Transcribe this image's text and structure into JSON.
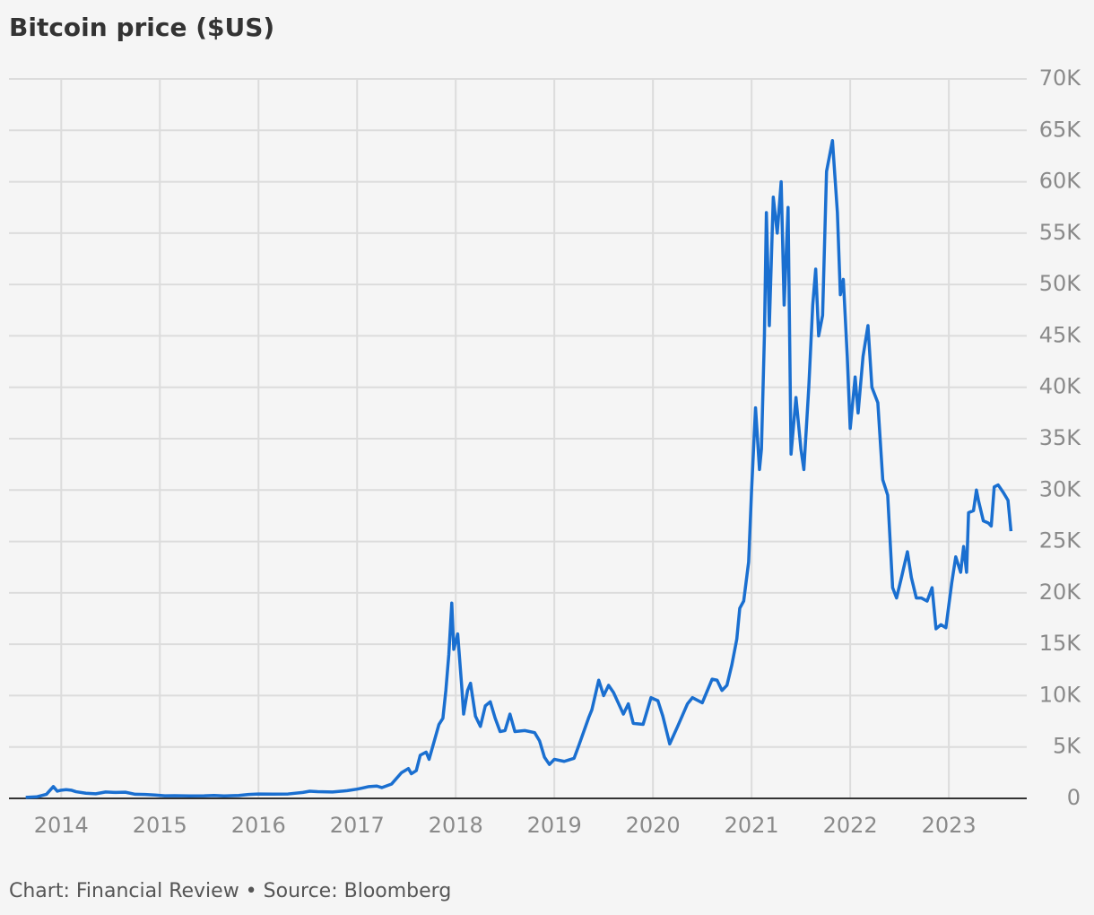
{
  "chart_data": {
    "type": "line",
    "title": "Bitcoin price ($US)",
    "source": "Chart: Financial Review • Source: Bloomberg",
    "color": "#1a6fd0",
    "grid": true,
    "xlim": [
      2013.47,
      2023.79
    ],
    "xticks": [
      2014,
      2015,
      2016,
      2017,
      2018,
      2019,
      2020,
      2021,
      2022,
      2023
    ],
    "ylim": [
      0,
      70000
    ],
    "yticks": [
      0,
      {
        "value": 5000,
        "label": "5K"
      },
      {
        "value": 10000,
        "label": "10K"
      },
      {
        "value": 15000,
        "label": "15K"
      },
      {
        "value": 20000,
        "label": "20K"
      },
      {
        "value": 25000,
        "label": "25K"
      },
      {
        "value": 30000,
        "label": "30K"
      },
      {
        "value": 35000,
        "label": "35K"
      },
      {
        "value": 40000,
        "label": "40K"
      },
      {
        "value": 45000,
        "label": "45K"
      },
      {
        "value": 50000,
        "label": "50K"
      },
      {
        "value": 55000,
        "label": "55K"
      },
      {
        "value": 60000,
        "label": "60K"
      },
      {
        "value": 65000,
        "label": "65K"
      },
      {
        "value": 70000,
        "label": "70K"
      }
    ],
    "x": [
      2013.64,
      2013.75,
      2013.85,
      2013.92,
      2013.96,
      2014.0,
      2014.05,
      2014.1,
      2014.15,
      2014.25,
      2014.35,
      2014.45,
      2014.55,
      2014.65,
      2014.75,
      2014.85,
      2014.95,
      2015.05,
      2015.15,
      2015.3,
      2015.45,
      2015.55,
      2015.65,
      2015.8,
      2015.9,
      2016.0,
      2016.15,
      2016.3,
      2016.45,
      2016.52,
      2016.6,
      2016.75,
      2016.9,
      2017.0,
      2017.05,
      2017.12,
      2017.2,
      2017.25,
      2017.35,
      2017.45,
      2017.52,
      2017.55,
      2017.6,
      2017.64,
      2017.7,
      2017.73,
      2017.78,
      2017.83,
      2017.87,
      2017.9,
      2017.93,
      2017.96,
      2017.98,
      2018.02,
      2018.06,
      2018.08,
      2018.12,
      2018.15,
      2018.2,
      2018.25,
      2018.3,
      2018.35,
      2018.4,
      2018.45,
      2018.5,
      2018.55,
      2018.6,
      2018.7,
      2018.8,
      2018.85,
      2018.9,
      2018.95,
      2019.0,
      2019.1,
      2019.2,
      2019.25,
      2019.35,
      2019.38,
      2019.45,
      2019.5,
      2019.55,
      2019.6,
      2019.7,
      2019.75,
      2019.8,
      2019.9,
      2019.98,
      2020.05,
      2020.1,
      2020.17,
      2020.25,
      2020.35,
      2020.4,
      2020.5,
      2020.6,
      2020.65,
      2020.7,
      2020.75,
      2020.8,
      2020.85,
      2020.88,
      2020.92,
      2020.97,
      2021.0,
      2021.04,
      2021.08,
      2021.1,
      2021.13,
      2021.15,
      2021.18,
      2021.22,
      2021.26,
      2021.3,
      2021.33,
      2021.37,
      2021.4,
      2021.45,
      2021.5,
      2021.53,
      2021.58,
      2021.62,
      2021.65,
      2021.68,
      2021.72,
      2021.76,
      2021.79,
      2021.82,
      2021.87,
      2021.9,
      2021.93,
      2021.97,
      2022.0,
      2022.05,
      2022.08,
      2022.13,
      2022.18,
      2022.22,
      2022.28,
      2022.33,
      2022.38,
      2022.43,
      2022.47,
      2022.52,
      2022.58,
      2022.62,
      2022.67,
      2022.72,
      2022.78,
      2022.83,
      2022.87,
      2022.92,
      2022.97,
      2023.03,
      2023.07,
      2023.12,
      2023.15,
      2023.18,
      2023.2,
      2023.25,
      2023.28,
      2023.3,
      2023.35,
      2023.4,
      2023.43,
      2023.46,
      2023.5,
      2023.55,
      2023.6,
      2023.63
    ],
    "values": [
      100,
      150,
      400,
      1150,
      700,
      800,
      850,
      800,
      650,
      500,
      450,
      620,
      580,
      600,
      400,
      380,
      330,
      250,
      260,
      240,
      250,
      280,
      240,
      280,
      380,
      430,
      420,
      430,
      580,
      700,
      650,
      620,
      750,
      900,
      1000,
      1150,
      1200,
      1050,
      1400,
      2500,
      2900,
      2400,
      2700,
      4200,
      4500,
      3800,
      5500,
      7200,
      7800,
      10500,
      14000,
      19000,
      14500,
      16000,
      11000,
      8200,
      10500,
      11200,
      8000,
      7000,
      9000,
      9400,
      7800,
      6500,
      6600,
      8200,
      6500,
      6600,
      6400,
      5600,
      4000,
      3300,
      3800,
      3600,
      3900,
      5200,
      7900,
      8600,
      11500,
      10000,
      11000,
      10300,
      8200,
      9200,
      7300,
      7200,
      9800,
      9500,
      8000,
      5300,
      7000,
      9200,
      9800,
      9300,
      11600,
      11500,
      10500,
      11000,
      13000,
      15500,
      18500,
      19200,
      23000,
      30000,
      38000,
      32000,
      34000,
      45000,
      57000,
      46000,
      58500,
      55000,
      60000,
      48000,
      57500,
      33500,
      39000,
      34000,
      32000,
      40000,
      48000,
      51500,
      45000,
      47000,
      61000,
      62500,
      64000,
      57000,
      49000,
      50500,
      43000,
      36000,
      41000,
      37500,
      43000,
      46000,
      40000,
      38500,
      31000,
      29500,
      20500,
      19500,
      21500,
      24000,
      21500,
      19500,
      19500,
      19200,
      20500,
      16500,
      16900,
      16600,
      21000,
      23500,
      22000,
      24500,
      22000,
      27800,
      28000,
      30000,
      29000,
      27000,
      26800,
      26500,
      30300,
      30500,
      29800,
      29000,
      26000
    ]
  }
}
